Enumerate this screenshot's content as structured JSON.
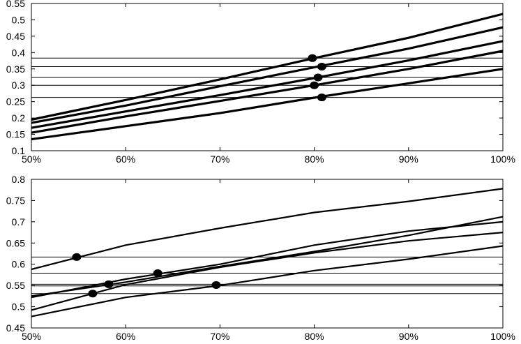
{
  "chart_data": [
    {
      "type": "line",
      "x": [
        0.5,
        0.6,
        0.7,
        0.8,
        0.9,
        1.0
      ],
      "xlim": [
        0.5,
        1.0
      ],
      "ylim": [
        0.1,
        0.55
      ],
      "xticks": [
        "50%",
        "60%",
        "70%",
        "80%",
        "90%",
        "100%"
      ],
      "yticks": [
        "0.1",
        "0.15",
        "0.2",
        "0.25",
        "0.3",
        "0.35",
        "0.4",
        "0.45",
        "0.5",
        "0.55"
      ],
      "ytick_values": [
        0.1,
        0.15,
        0.2,
        0.25,
        0.3,
        0.35,
        0.4,
        0.45,
        0.5,
        0.55
      ],
      "line_style": "thick",
      "series": [
        {
          "values": [
            0.195,
            0.255,
            0.318,
            0.383,
            0.445,
            0.518
          ]
        },
        {
          "values": [
            0.185,
            0.238,
            0.297,
            0.355,
            0.412,
            0.477
          ]
        },
        {
          "values": [
            0.17,
            0.22,
            0.27,
            0.322,
            0.376,
            0.435
          ]
        },
        {
          "values": [
            0.155,
            0.205,
            0.252,
            0.3,
            0.35,
            0.405
          ]
        },
        {
          "values": [
            0.135,
            0.175,
            0.215,
            0.262,
            0.306,
            0.35
          ]
        }
      ],
      "markers": [
        {
          "x": 0.798,
          "y": 0.383
        },
        {
          "x": 0.808,
          "y": 0.357
        },
        {
          "x": 0.804,
          "y": 0.324
        },
        {
          "x": 0.8,
          "y": 0.3
        },
        {
          "x": 0.808,
          "y": 0.263
        }
      ],
      "hlines": [
        0.383,
        0.357,
        0.324,
        0.3,
        0.263
      ]
    },
    {
      "type": "line",
      "x": [
        0.5,
        0.6,
        0.7,
        0.8,
        0.9,
        1.0
      ],
      "xlim": [
        0.5,
        1.0
      ],
      "ylim": [
        0.45,
        0.8
      ],
      "xticks": [
        "50%",
        "60%",
        "70%",
        "80%",
        "90%",
        "100%"
      ],
      "yticks": [
        "0.45",
        "0.5",
        "0.55",
        "0.6",
        "0.65",
        "0.7",
        "0.75",
        "0.8"
      ],
      "ytick_values": [
        0.45,
        0.5,
        0.55,
        0.6,
        0.65,
        0.7,
        0.75,
        0.8
      ],
      "line_style": "thin",
      "series": [
        {
          "values": [
            0.588,
            0.645,
            0.685,
            0.722,
            0.748,
            0.778
          ]
        },
        {
          "values": [
            0.525,
            0.558,
            0.595,
            0.63,
            0.668,
            0.712
          ]
        },
        {
          "values": [
            0.522,
            0.565,
            0.6,
            0.645,
            0.678,
            0.7
          ]
        },
        {
          "values": [
            0.492,
            0.552,
            0.593,
            0.627,
            0.655,
            0.675
          ]
        },
        {
          "values": [
            0.477,
            0.522,
            0.55,
            0.585,
            0.612,
            0.643
          ]
        }
      ],
      "markers": [
        {
          "x": 0.548,
          "y": 0.617
        },
        {
          "x": 0.634,
          "y": 0.579
        },
        {
          "x": 0.582,
          "y": 0.553
        },
        {
          "x": 0.565,
          "y": 0.531
        },
        {
          "x": 0.696,
          "y": 0.551
        }
      ],
      "hlines": [
        0.617,
        0.579,
        0.553,
        0.549,
        0.531
      ]
    }
  ]
}
